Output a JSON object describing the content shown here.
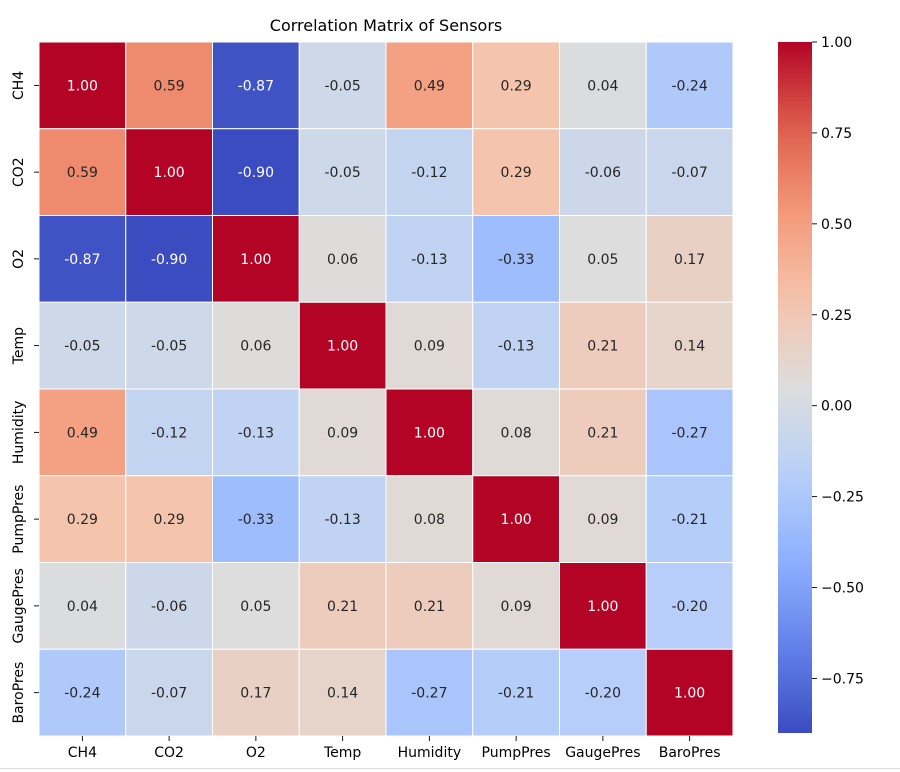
{
  "chart_data": {
    "type": "heatmap",
    "title": "Correlation Matrix of Sensors",
    "xlabel": "",
    "ylabel": "",
    "x_categories": [
      "CH4",
      "CO2",
      "O2",
      "Temp",
      "Humidity",
      "PumpPres",
      "GaugePres",
      "BaroPres"
    ],
    "y_categories": [
      "CH4",
      "CO2",
      "O2",
      "Temp",
      "Humidity",
      "PumpPres",
      "GaugePres",
      "BaroPres"
    ],
    "values": [
      [
        1.0,
        0.59,
        -0.87,
        -0.05,
        0.49,
        0.29,
        0.04,
        -0.24
      ],
      [
        0.59,
        1.0,
        -0.9,
        -0.05,
        -0.12,
        0.29,
        -0.06,
        -0.07
      ],
      [
        -0.87,
        -0.9,
        1.0,
        0.06,
        -0.13,
        -0.33,
        0.05,
        0.17
      ],
      [
        -0.05,
        -0.05,
        0.06,
        1.0,
        0.09,
        -0.13,
        0.21,
        0.14
      ],
      [
        0.49,
        -0.12,
        -0.13,
        0.09,
        1.0,
        0.08,
        0.21,
        -0.27
      ],
      [
        0.29,
        0.29,
        -0.33,
        -0.13,
        0.08,
        1.0,
        0.09,
        -0.21
      ],
      [
        0.04,
        -0.06,
        0.05,
        0.21,
        0.21,
        0.09,
        1.0,
        -0.2
      ],
      [
        -0.24,
        -0.07,
        0.17,
        0.14,
        -0.27,
        -0.21,
        -0.2,
        1.0
      ]
    ],
    "annotation_format": "0.00",
    "colormap": "coolwarm",
    "color_range": [
      -0.9,
      1.0
    ],
    "colorbar_ticks": [
      1.0,
      0.75,
      0.5,
      0.25,
      0.0,
      -0.25,
      -0.5,
      -0.75
    ],
    "colorbar_tick_labels": [
      "1.00",
      "0.75",
      "0.50",
      "0.25",
      "0.00",
      "−0.25",
      "−0.50",
      "−0.75"
    ],
    "grid_lines": true,
    "legend": "colorbar-right"
  }
}
